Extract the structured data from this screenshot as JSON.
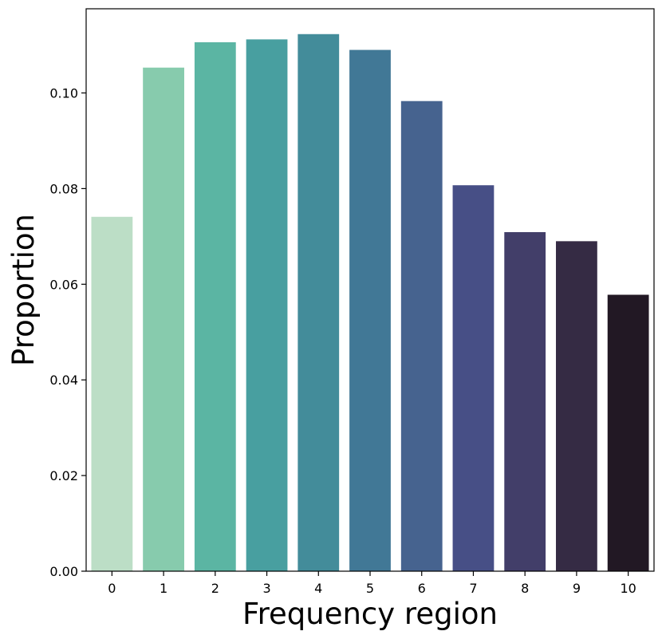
{
  "chart_data": {
    "type": "bar",
    "title": "",
    "xlabel": "Frequency region",
    "ylabel": "Proportion",
    "categories": [
      "0",
      "1",
      "2",
      "3",
      "4",
      "5",
      "6",
      "7",
      "8",
      "9",
      "10"
    ],
    "values": [
      0.0741,
      0.1053,
      0.1106,
      0.1112,
      0.1123,
      0.109,
      0.0983,
      0.0807,
      0.0709,
      0.069,
      0.0578
    ],
    "colors": [
      "#bcdec6",
      "#87cbad",
      "#5bb5a3",
      "#489fa0",
      "#438c9a",
      "#417896",
      "#46638f",
      "#474f86",
      "#423e69",
      "#352b44",
      "#221824"
    ],
    "ylim": [
      0,
      0.1176
    ],
    "yticks": [
      0.0,
      0.02,
      0.04,
      0.06,
      0.08,
      0.1
    ],
    "ytick_labels": [
      "0.00",
      "0.02",
      "0.04",
      "0.06",
      "0.08",
      "0.10"
    ],
    "grid": false,
    "legend": "none"
  }
}
